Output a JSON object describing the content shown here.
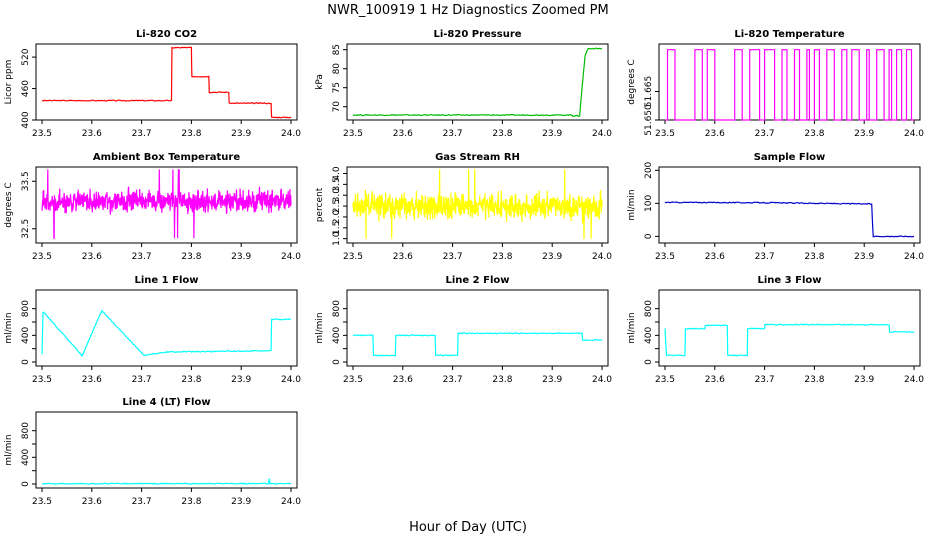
{
  "title": "NWR_100919  1 Hz Diagnostics Zoomed PM",
  "xlabel": "Hour of Day (UTC)",
  "chart_data": [
    {
      "type": "line",
      "title": "Li-820 CO2",
      "ylabel": "Licor ppm",
      "color": "#ff0000",
      "xlim": [
        23.5,
        24.0
      ],
      "ylim": [
        400,
        545
      ],
      "xticks": [
        "23.5",
        "23.6",
        "23.7",
        "23.8",
        "23.9",
        "24.0"
      ],
      "yticks": [
        400,
        460,
        520
      ],
      "ytick_labels": [
        "400",
        "460",
        "520"
      ],
      "series": [
        {
          "x": [
            23.5,
            23.76,
            23.761,
            23.8,
            23.801,
            23.835,
            23.836,
            23.875,
            23.876,
            23.96,
            23.961,
            24.0
          ],
          "y": [
            437,
            437,
            538,
            538,
            483,
            483,
            453,
            453,
            432,
            432,
            405,
            405
          ]
        }
      ]
    },
    {
      "type": "line",
      "title": "Li-820 Pressure",
      "ylabel": "kPa",
      "color": "#00bb00",
      "xlim": [
        23.5,
        24.0
      ],
      "ylim": [
        66.5,
        86.5
      ],
      "xticks": [
        "23.5",
        "23.6",
        "23.7",
        "23.8",
        "23.9",
        "24.0"
      ],
      "yticks": [
        70,
        75,
        80,
        85
      ],
      "ytick_labels": [
        "70",
        "75",
        "80",
        "85"
      ],
      "series": [
        {
          "x": [
            23.5,
            23.94,
            23.941,
            23.955,
            23.96,
            23.966,
            23.972,
            23.98,
            24.0
          ],
          "y": [
            67.8,
            67.8,
            67.6,
            67.6,
            75,
            83.5,
            85.3,
            85.3,
            85.3
          ]
        }
      ]
    },
    {
      "type": "line",
      "title": "Li-820 Temperature",
      "ylabel": "degrees C",
      "color": "#ff00ff",
      "xlim": [
        23.5,
        24.0
      ],
      "ylim": [
        51.65,
        51.69
      ],
      "xticks": [
        "23.5",
        "23.6",
        "23.7",
        "23.8",
        "23.9",
        "24.0"
      ],
      "yticks": [
        51.65,
        51.665
      ],
      "ytick_labels": [
        "51.650",
        "51.665"
      ],
      "series": [
        {
          "low": 51.65,
          "high": 51.687,
          "switch_x": [
            23.505,
            23.52,
            23.56,
            23.575,
            23.585,
            23.6,
            23.64,
            23.655,
            23.67,
            23.69,
            23.7,
            23.72,
            23.735,
            23.745,
            23.76,
            23.77,
            23.785,
            23.79,
            23.8,
            23.81,
            23.825,
            23.84,
            23.855,
            23.865,
            23.875,
            23.89,
            23.905,
            23.91,
            23.925,
            23.94,
            23.95,
            23.955,
            23.965,
            23.975,
            23.985,
            23.995
          ]
        }
      ]
    },
    {
      "type": "line",
      "title": "Ambient Box Temperature",
      "ylabel": "degrees C",
      "color": "#ff00ff",
      "xlim": [
        23.5,
        24.0
      ],
      "ylim": [
        32.2,
        33.8
      ],
      "xticks": [
        "23.5",
        "23.6",
        "23.7",
        "23.8",
        "23.9",
        "24.0"
      ],
      "yticks": [
        32.5,
        33.5
      ],
      "ytick_labels": [
        "32.5",
        "33.5"
      ],
      "series": [
        {
          "mean": 33.08,
          "noise": 0.14,
          "min": 32.3,
          "max": 33.75
        }
      ]
    },
    {
      "type": "line",
      "title": "Gas Stream RH",
      "ylabel": "percent",
      "color": "#ffff00",
      "xlim": [
        23.5,
        24.0
      ],
      "ylim": [
        0.8,
        4.3
      ],
      "xticks": [
        "23.5",
        "23.6",
        "23.7",
        "23.8",
        "23.9",
        "24.0"
      ],
      "yticks": [
        1.0,
        1.5,
        2.0,
        2.5,
        3.0,
        3.5,
        4.0
      ],
      "ytick_labels": [
        "1.0",
        "1.5",
        "2.0",
        "2.5",
        "3.0",
        "3.5",
        "4.0"
      ],
      "series": [
        {
          "mean": 2.5,
          "noise": 0.35,
          "min": 1.0,
          "max": 4.2
        }
      ]
    },
    {
      "type": "line",
      "title": "Sample Flow",
      "ylabel": "ml/min",
      "color": "#0000cc",
      "xlim": [
        23.5,
        24.0
      ],
      "ylim": [
        -20,
        210
      ],
      "xticks": [
        "23.5",
        "23.6",
        "23.7",
        "23.8",
        "23.9",
        "24.0"
      ],
      "yticks": [
        0,
        100,
        200
      ],
      "ytick_labels": [
        "0",
        "100",
        "200"
      ],
      "series": [
        {
          "x": [
            23.5,
            23.7,
            23.915,
            23.918,
            24.0
          ],
          "y": [
            103,
            102,
            98,
            0,
            0
          ]
        }
      ]
    },
    {
      "type": "line",
      "title": "Line 1 Flow",
      "ylabel": "ml/min",
      "color": "#00ffff",
      "xlim": [
        23.5,
        24.0
      ],
      "ylim": [
        -60,
        1080
      ],
      "xticks": [
        "23.5",
        "23.6",
        "23.7",
        "23.8",
        "23.9",
        "24.0"
      ],
      "yticks": [
        0,
        200,
        400,
        600,
        800
      ],
      "ytick_labels": [
        "0",
        "400",
        "800"
      ],
      "series": [
        {
          "x": [
            23.5,
            23.502,
            23.503,
            23.58,
            23.581,
            23.62,
            23.621,
            23.705,
            23.706,
            23.75,
            23.751,
            23.96,
            23.961,
            24.0
          ],
          "y": [
            120,
            750,
            750,
            100,
            100,
            770,
            760,
            100,
            100,
            150,
            150,
            170,
            640,
            640
          ]
        }
      ]
    },
    {
      "type": "line",
      "title": "Line 2 Flow",
      "ylabel": "ml/min",
      "color": "#00ffff",
      "xlim": [
        23.5,
        24.0
      ],
      "ylim": [
        -60,
        1080
      ],
      "xticks": [
        "23.5",
        "23.6",
        "23.7",
        "23.8",
        "23.9",
        "24.0"
      ],
      "yticks": [
        0,
        200,
        400,
        600,
        800
      ],
      "ytick_labels": [
        "0",
        "400",
        "800"
      ],
      "series": [
        {
          "x": [
            23.5,
            23.54,
            23.541,
            23.585,
            23.586,
            23.665,
            23.666,
            23.71,
            23.711,
            23.96,
            23.961,
            24.0
          ],
          "y": [
            400,
            400,
            100,
            100,
            400,
            400,
            100,
            100,
            430,
            430,
            330,
            330
          ]
        }
      ]
    },
    {
      "type": "line",
      "title": "Line 3 Flow",
      "ylabel": "ml/min",
      "color": "#00ffff",
      "xlim": [
        23.5,
        24.0
      ],
      "ylim": [
        -60,
        1080
      ],
      "xticks": [
        "23.5",
        "23.6",
        "23.7",
        "23.8",
        "23.9",
        "24.0"
      ],
      "yticks": [
        0,
        200,
        400,
        600,
        800
      ],
      "ytick_labels": [
        "0",
        "400",
        "800"
      ],
      "series": [
        {
          "x": [
            23.5,
            23.503,
            23.504,
            23.54,
            23.541,
            23.58,
            23.581,
            23.625,
            23.626,
            23.665,
            23.666,
            23.7,
            23.701,
            23.95,
            23.951,
            24.0
          ],
          "y": [
            500,
            100,
            100,
            100,
            500,
            500,
            550,
            550,
            100,
            100,
            500,
            500,
            560,
            560,
            450,
            450
          ]
        }
      ]
    },
    {
      "type": "line",
      "title": "Line 4 (LT) Flow",
      "ylabel": "ml/min",
      "color": "#00ffff",
      "xlim": [
        23.5,
        24.0
      ],
      "ylim": [
        -60,
        1080
      ],
      "xticks": [
        "23.5",
        "23.6",
        "23.7",
        "23.8",
        "23.9",
        "24.0"
      ],
      "yticks": [
        0,
        200,
        400,
        600,
        800
      ],
      "ytick_labels": [
        "0",
        "400",
        "800"
      ],
      "series": [
        {
          "x": [
            23.5,
            23.955,
            23.956,
            23.957,
            23.958,
            24.0
          ],
          "y": [
            5,
            5,
            50,
            50,
            5,
            5
          ]
        }
      ]
    }
  ]
}
